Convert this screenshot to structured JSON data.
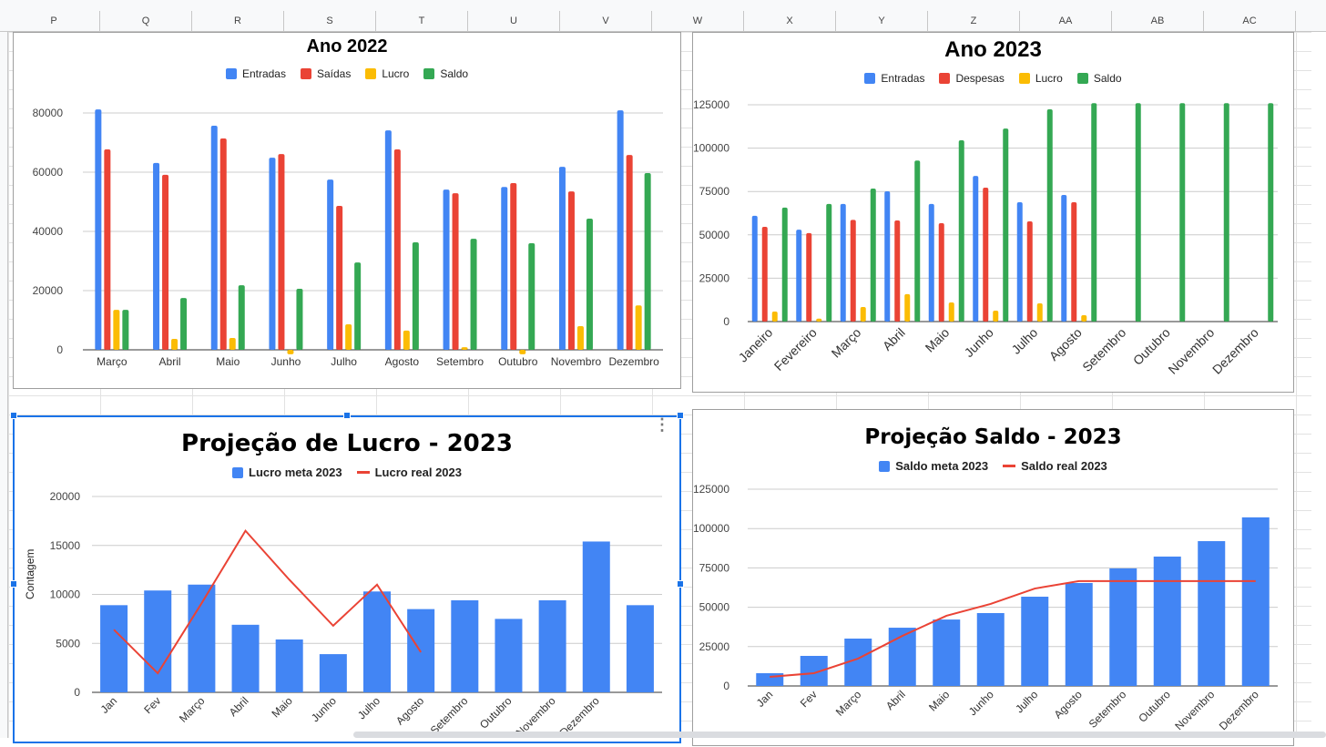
{
  "sheet": {
    "columns": [
      "P",
      "Q",
      "R",
      "S",
      "T",
      "U",
      "V",
      "W",
      "X",
      "Y",
      "Z",
      "AA",
      "AB",
      "AC"
    ]
  },
  "chart_data": [
    {
      "type": "bar",
      "title": "Ano 2022",
      "ylim": [
        0,
        80000
      ],
      "yticks": [
        "0",
        "20000",
        "40000",
        "60000",
        "80000"
      ],
      "grid": true,
      "legend": "top",
      "categories": [
        "Março",
        "Abril",
        "Maio",
        "Junho",
        "Julho",
        "Agosto",
        "Setembro",
        "Outubro",
        "Novembro",
        "Dezembro"
      ],
      "series": [
        {
          "name": "Entradas",
          "color": "#4285f4",
          "kind": "bar",
          "values": [
            81200,
            63100,
            75700,
            64900,
            57500,
            74100,
            54100,
            55000,
            61800,
            80900
          ]
        },
        {
          "name": "Saídas",
          "color": "#ea4335",
          "kind": "bar",
          "values": [
            67700,
            59100,
            71400,
            66100,
            48600,
            67700,
            52900,
            56300,
            53500,
            65800
          ]
        },
        {
          "name": "Lucro",
          "color": "#fbbc04",
          "kind": "bar",
          "values": [
            13500,
            3700,
            4000,
            -1500,
            8600,
            6500,
            900,
            -1500,
            8000,
            15000
          ]
        },
        {
          "name": "Saldo",
          "color": "#34a853",
          "kind": "bar",
          "values": [
            13500,
            17500,
            21800,
            20600,
            29500,
            36300,
            37500,
            36000,
            44300,
            59700
          ]
        }
      ]
    },
    {
      "type": "bar",
      "title": "Ano 2023",
      "ylim": [
        0,
        125000
      ],
      "yticks": [
        "0",
        "25000",
        "50000",
        "75000",
        "100000",
        "125000"
      ],
      "grid": true,
      "legend": "top",
      "categories": [
        "Janeiro",
        "Fevereiro",
        "Março",
        "Abril",
        "Maio",
        "Junho",
        "Julho",
        "Agosto",
        "Setembro",
        "Outubro",
        "Novembro",
        "Dezembro"
      ],
      "series": [
        {
          "name": "Entradas",
          "color": "#4285f4",
          "kind": "bar",
          "values": [
            61000,
            53000,
            67800,
            75100,
            67800,
            84000,
            68800,
            73000,
            null,
            null,
            null,
            null
          ]
        },
        {
          "name": "Despesas",
          "color": "#ea4335",
          "kind": "bar",
          "values": [
            54600,
            51000,
            58600,
            58300,
            56700,
            77200,
            57800,
            68800,
            null,
            null,
            null,
            null
          ]
        },
        {
          "name": "Lucro",
          "color": "#fbbc04",
          "kind": "bar",
          "values": [
            5800,
            1700,
            8400,
            15800,
            11000,
            6300,
            10500,
            3700,
            null,
            null,
            null,
            null
          ]
        },
        {
          "name": "Saldo",
          "color": "#34a853",
          "kind": "bar",
          "values": [
            65700,
            67800,
            76700,
            92800,
            104500,
            111300,
            122400,
            125900,
            125900,
            125900,
            125900,
            125900
          ]
        }
      ]
    },
    {
      "type": "bar",
      "title": "Projeção de Lucro - 2023",
      "ylabel": "Contagem",
      "ylim": [
        0,
        20000
      ],
      "yticks": [
        "0",
        "5000",
        "10000",
        "15000",
        "20000"
      ],
      "grid": true,
      "legend": "top",
      "categories": [
        "Jan",
        "Fev",
        "Março",
        "Abril",
        "Maio",
        "Junho",
        "Julho",
        "Agosto",
        "Setembro",
        "Outubro",
        "Novembro",
        "Dezembro",
        ""
      ],
      "series": [
        {
          "name": "Lucro meta 2023",
          "color": "#4285f4",
          "kind": "bar",
          "values": [
            8900,
            10400,
            11000,
            6900,
            5400,
            3900,
            10300,
            8500,
            9400,
            7500,
            9400,
            15400,
            8900
          ]
        },
        {
          "name": "Lucro real 2023",
          "color": "#ea4335",
          "kind": "line",
          "values": [
            6400,
            1950,
            9100,
            16500,
            11500,
            6800,
            11000,
            4100,
            null,
            null,
            null,
            null,
            null
          ]
        }
      ]
    },
    {
      "type": "bar",
      "title": "Projeção Saldo - 2023",
      "ylim": [
        0,
        125000
      ],
      "yticks": [
        "0",
        "25000",
        "50000",
        "75000",
        "100000",
        "125000"
      ],
      "grid": true,
      "legend": "top",
      "categories": [
        "Jan",
        "Fev",
        "Março",
        "Abril",
        "Maio",
        "Junho",
        "Julho",
        "Agosto",
        "Setembro",
        "Outubro",
        "Novembro",
        "Dezembro"
      ],
      "series": [
        {
          "name": "Saldo meta 2023",
          "color": "#4285f4",
          "kind": "bar",
          "values": [
            8100,
            19100,
            30100,
            37000,
            42200,
            46300,
            56700,
            65400,
            74700,
            82200,
            92000,
            107100
          ]
        },
        {
          "name": "Saldo real 2023",
          "color": "#ea4335",
          "kind": "line",
          "values": [
            5800,
            8100,
            17400,
            31800,
            44600,
            52100,
            61900,
            66600,
            66600,
            66600,
            66600,
            66600
          ]
        }
      ]
    }
  ]
}
